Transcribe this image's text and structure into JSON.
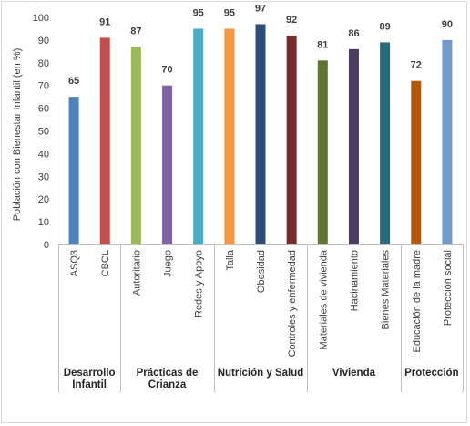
{
  "chart_data": {
    "type": "bar",
    "ylabel": "Población con Bienestar Infantil (en %)",
    "xlabel": "",
    "ylim": [
      0,
      100
    ],
    "yticks": [
      0,
      10,
      20,
      30,
      40,
      50,
      60,
      70,
      80,
      90,
      100
    ],
    "grid": false,
    "legend": "none",
    "categories": [
      "ASQ3",
      "CBCL",
      "Autoritario",
      "Juego",
      "Redes y Apoyo",
      "Talla",
      "Obesidad",
      "Controles y enfermedad",
      "Materiales de vivienda",
      "Hacinamiento",
      "Bienes Materiales",
      "Educación de la madre",
      "Protección social"
    ],
    "values": [
      65,
      91,
      87,
      70,
      95,
      95,
      97,
      92,
      81,
      86,
      89,
      72,
      90
    ],
    "colors": [
      "#4f81bd",
      "#c0504d",
      "#9bbb59",
      "#8064a2",
      "#4bacc6",
      "#f79646",
      "#2c4d75",
      "#772c2a",
      "#5f7530",
      "#4d3b62",
      "#276a7c",
      "#b65708",
      "#729aca"
    ],
    "groups": [
      {
        "label": [
          "Desarrollo",
          "Infantil"
        ],
        "count": 2
      },
      {
        "label": [
          "Prácticas de",
          "Crianza"
        ],
        "count": 3
      },
      {
        "label": [
          "Nutrición y Salud"
        ],
        "count": 3
      },
      {
        "label": [
          "Vivienda"
        ],
        "count": 3
      },
      {
        "label": [
          "Protección"
        ],
        "count": 2
      }
    ]
  }
}
